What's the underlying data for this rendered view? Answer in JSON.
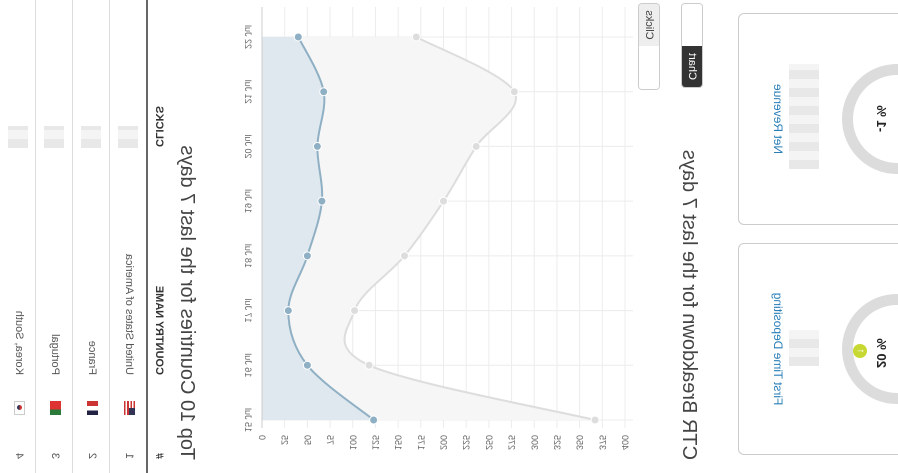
{
  "cards": [
    {
      "title": "First Time Depositing",
      "percent_label": "20 %",
      "percent": 20,
      "trend_icon": "arrow-up-circle-icon",
      "accent": "#c8d832"
    },
    {
      "title": "Net Revenue",
      "percent_label": "-1 %",
      "percent": -1
    }
  ],
  "ctr": {
    "title": "CTR Breakdown for the last 7 days",
    "view_buttons": [
      "Chart",
      ""
    ],
    "metric_select": {
      "selected": "Clicks"
    }
  },
  "chart_data": {
    "type": "area",
    "title": "CTR Breakdown for the last 7 days",
    "categories": [
      "15 Jul",
      "16 Jul",
      "17 Jul",
      "18 Jul",
      "19 Jul",
      "20 Jul",
      "21 Jul",
      "22 Jul"
    ],
    "y_ticks": [
      "0",
      "25",
      "50",
      "75",
      "100",
      "125",
      "150",
      "175",
      "200",
      "225",
      "250",
      "275",
      "300",
      "325",
      "350",
      "375",
      "400"
    ],
    "ylim": [
      0,
      400
    ],
    "grid": true,
    "series": [
      {
        "name": "series-grey",
        "color": "#dddddd",
        "fill": "#f6f6f6",
        "values": [
          367,
          118,
          102,
          157,
          200,
          236,
          278,
          170
        ]
      },
      {
        "name": "series-blue",
        "color": "#8fb0c4",
        "fill": "#dfe8ee",
        "values": [
          123,
          50,
          29,
          50,
          66,
          61,
          68,
          40
        ]
      }
    ]
  },
  "countries": {
    "title": "Top 10 Countries for the last 7 days",
    "headers": {
      "num": "#",
      "name": "COUNTRY NAME",
      "clicks": "CLICKS"
    },
    "rows": [
      {
        "num": "1",
        "flag": "us",
        "name": "United States of America"
      },
      {
        "num": "2",
        "flag": "fr",
        "name": "France"
      },
      {
        "num": "3",
        "flag": "pt",
        "name": "Portugal"
      },
      {
        "num": "4",
        "flag": "kr",
        "name": "Korea, South"
      }
    ]
  }
}
